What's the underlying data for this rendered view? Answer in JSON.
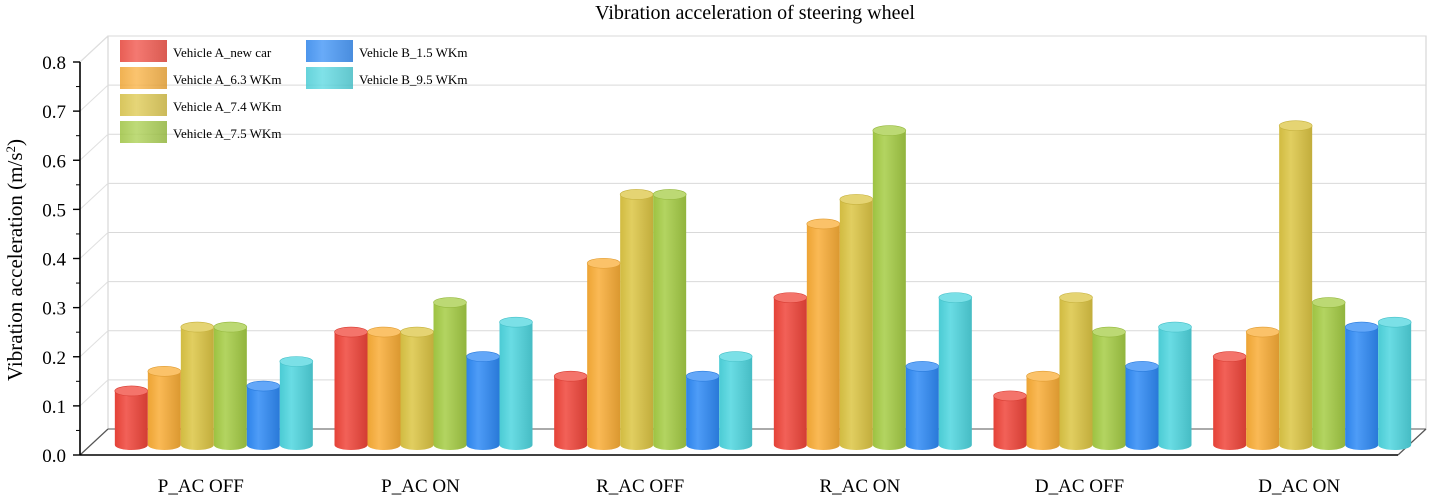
{
  "chart_data": {
    "type": "bar",
    "title": "Vibration acceleration of steering wheel",
    "xlabel": "",
    "ylabel": "Vibration acceleration (m/s",
    "ylabel_sup": "2",
    "ylabel_close": ")",
    "ylim": [
      0,
      0.8
    ],
    "yticks": [
      "0.0",
      "0.1",
      "0.2",
      "0.3",
      "0.4",
      "0.5",
      "0.6",
      "0.7",
      "0.8"
    ],
    "grid": true,
    "legend_position": "top-left",
    "categories": [
      "P_AC OFF",
      "P_AC ON",
      "R_AC OFF",
      "R_AC ON",
      "D_AC OFF",
      "D_AC ON"
    ],
    "series": [
      {
        "name": "Vehicle A_new car",
        "color": "#f0453a",
        "values": [
          0.11,
          0.23,
          0.14,
          0.3,
          0.1,
          0.18
        ]
      },
      {
        "name": "Vehicle A_6.3 WKm",
        "color": "#f9ad37",
        "values": [
          0.15,
          0.23,
          0.37,
          0.45,
          0.14,
          0.23
        ]
      },
      {
        "name": "Vehicle A_7.4 WKm",
        "color": "#dcc544",
        "values": [
          0.24,
          0.23,
          0.51,
          0.5,
          0.3,
          0.65
        ]
      },
      {
        "name": "Vehicle A_7.5 WKm",
        "color": "#a5cc45",
        "values": [
          0.24,
          0.29,
          0.51,
          0.64,
          0.23,
          0.29
        ]
      },
      {
        "name": "Vehicle B_1.5 WKm",
        "color": "#2f8af5",
        "values": [
          0.12,
          0.18,
          0.14,
          0.16,
          0.16,
          0.24
        ]
      },
      {
        "name": "Vehicle B_9.5 WKm",
        "color": "#4fd6df",
        "values": [
          0.17,
          0.25,
          0.18,
          0.3,
          0.24,
          0.25
        ]
      }
    ]
  }
}
